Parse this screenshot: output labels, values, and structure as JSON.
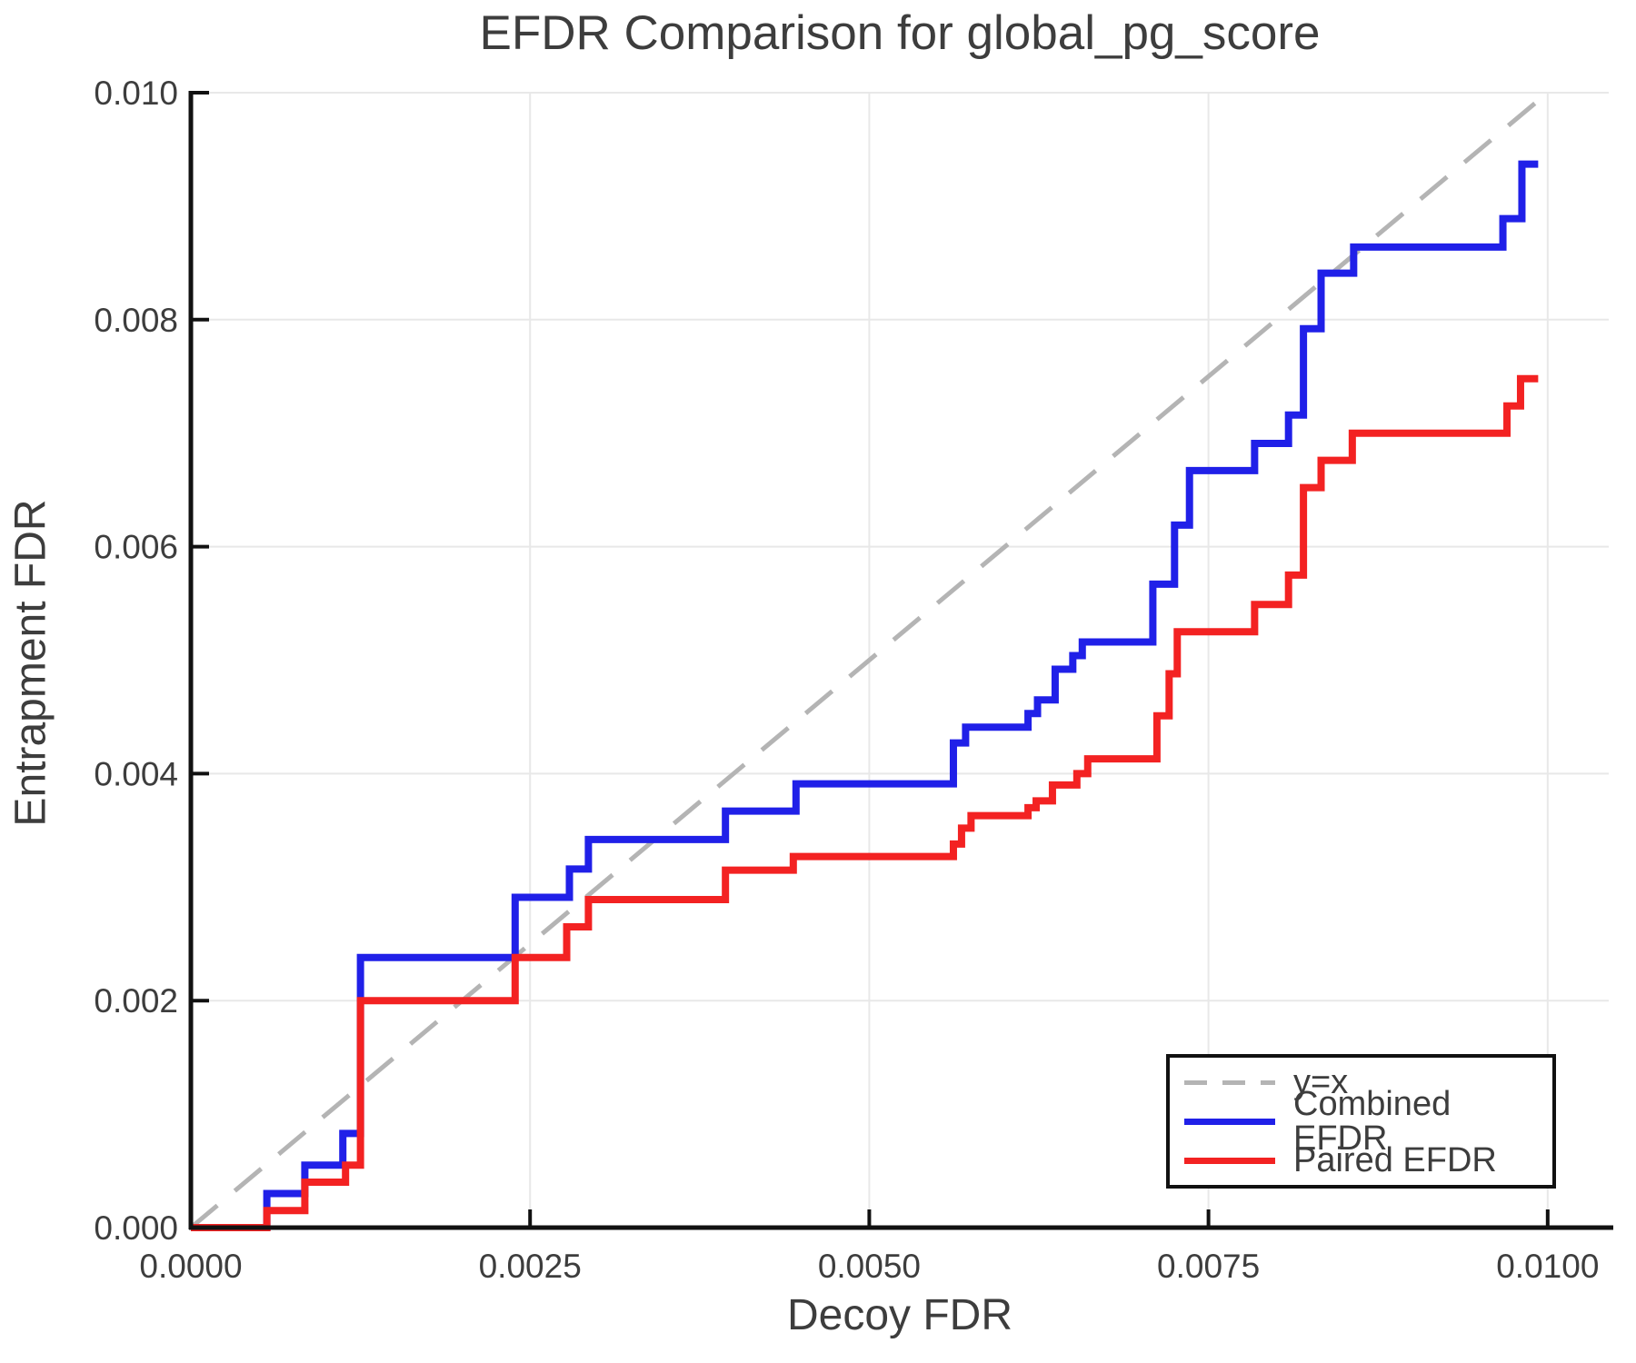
{
  "chart_data": {
    "type": "line",
    "title": "EFDR Comparison for global_pg_score",
    "xlabel": "Decoy FDR",
    "ylabel": "Entrapment FDR",
    "xlim": [
      0,
      0.01045
    ],
    "ylim": [
      0,
      0.01
    ],
    "grid": true,
    "legend_position": "lower right",
    "x_ticks": [
      0.0,
      0.0025,
      0.005,
      0.0075,
      0.01
    ],
    "x_ticklabels": [
      "0.0000",
      "0.0025",
      "0.0050",
      "0.0075",
      "0.0100"
    ],
    "y_ticks": [
      0.0,
      0.002,
      0.004,
      0.006,
      0.008,
      0.01
    ],
    "y_ticklabels": [
      "0.000",
      "0.002",
      "0.004",
      "0.006",
      "0.008",
      "0.010"
    ],
    "colors": {
      "identity": "#b4b4b4",
      "combined": "#2020e8",
      "paired": "#f32222",
      "grid": "#e8e8e8",
      "axis": "#111111",
      "text": "#3d3d3d"
    },
    "series": [
      {
        "name": "y=x",
        "style": "dashed",
        "color": "#b4b4b4",
        "points": [
          [
            0,
            0
          ],
          [
            0.01,
            0.01
          ]
        ]
      },
      {
        "name": "Combined EFDR",
        "style": "step",
        "color": "#2020e8",
        "end_x": 0.00993,
        "points": [
          [
            0,
            0
          ],
          [
            0.00056,
            0.0003
          ],
          [
            0.00084,
            0.00055
          ],
          [
            0.00112,
            0.00083
          ],
          [
            0.00125,
            0.00238
          ],
          [
            0.00239,
            0.00291
          ],
          [
            0.00279,
            0.00316
          ],
          [
            0.00293,
            0.00342
          ],
          [
            0.00394,
            0.00367
          ],
          [
            0.00446,
            0.00391
          ],
          [
            0.00562,
            0.00427
          ],
          [
            0.00571,
            0.00441
          ],
          [
            0.00617,
            0.00453
          ],
          [
            0.00624,
            0.00465
          ],
          [
            0.00637,
            0.00492
          ],
          [
            0.0065,
            0.00504
          ],
          [
            0.00657,
            0.00516
          ],
          [
            0.00709,
            0.00567
          ],
          [
            0.00725,
            0.00619
          ],
          [
            0.00736,
            0.00667
          ],
          [
            0.00784,
            0.00691
          ],
          [
            0.00809,
            0.00716
          ],
          [
            0.0082,
            0.00792
          ],
          [
            0.00833,
            0.00841
          ],
          [
            0.00857,
            0.00864
          ],
          [
            0.00967,
            0.00889
          ],
          [
            0.00981,
            0.00937
          ]
        ]
      },
      {
        "name": "Paired EFDR",
        "style": "step",
        "color": "#f32222",
        "end_x": 0.00993,
        "points": [
          [
            0,
            0
          ],
          [
            0.00056,
            0.00015
          ],
          [
            0.00084,
            0.0004
          ],
          [
            0.00114,
            0.00055
          ],
          [
            0.00125,
            0.002
          ],
          [
            0.00239,
            0.00238
          ],
          [
            0.00277,
            0.00265
          ],
          [
            0.00293,
            0.00289
          ],
          [
            0.00394,
            0.00315
          ],
          [
            0.00444,
            0.00327
          ],
          [
            0.00562,
            0.00338
          ],
          [
            0.00568,
            0.00352
          ],
          [
            0.00575,
            0.00363
          ],
          [
            0.00617,
            0.0037
          ],
          [
            0.00623,
            0.00376
          ],
          [
            0.00635,
            0.0039
          ],
          [
            0.00653,
            0.004
          ],
          [
            0.00661,
            0.00413
          ],
          [
            0.00712,
            0.00451
          ],
          [
            0.00721,
            0.00488
          ],
          [
            0.00727,
            0.00525
          ],
          [
            0.00784,
            0.00549
          ],
          [
            0.00809,
            0.00575
          ],
          [
            0.0082,
            0.00652
          ],
          [
            0.00833,
            0.00676
          ],
          [
            0.00856,
            0.007
          ],
          [
            0.0097,
            0.00724
          ],
          [
            0.0098,
            0.00748
          ]
        ]
      }
    ]
  }
}
